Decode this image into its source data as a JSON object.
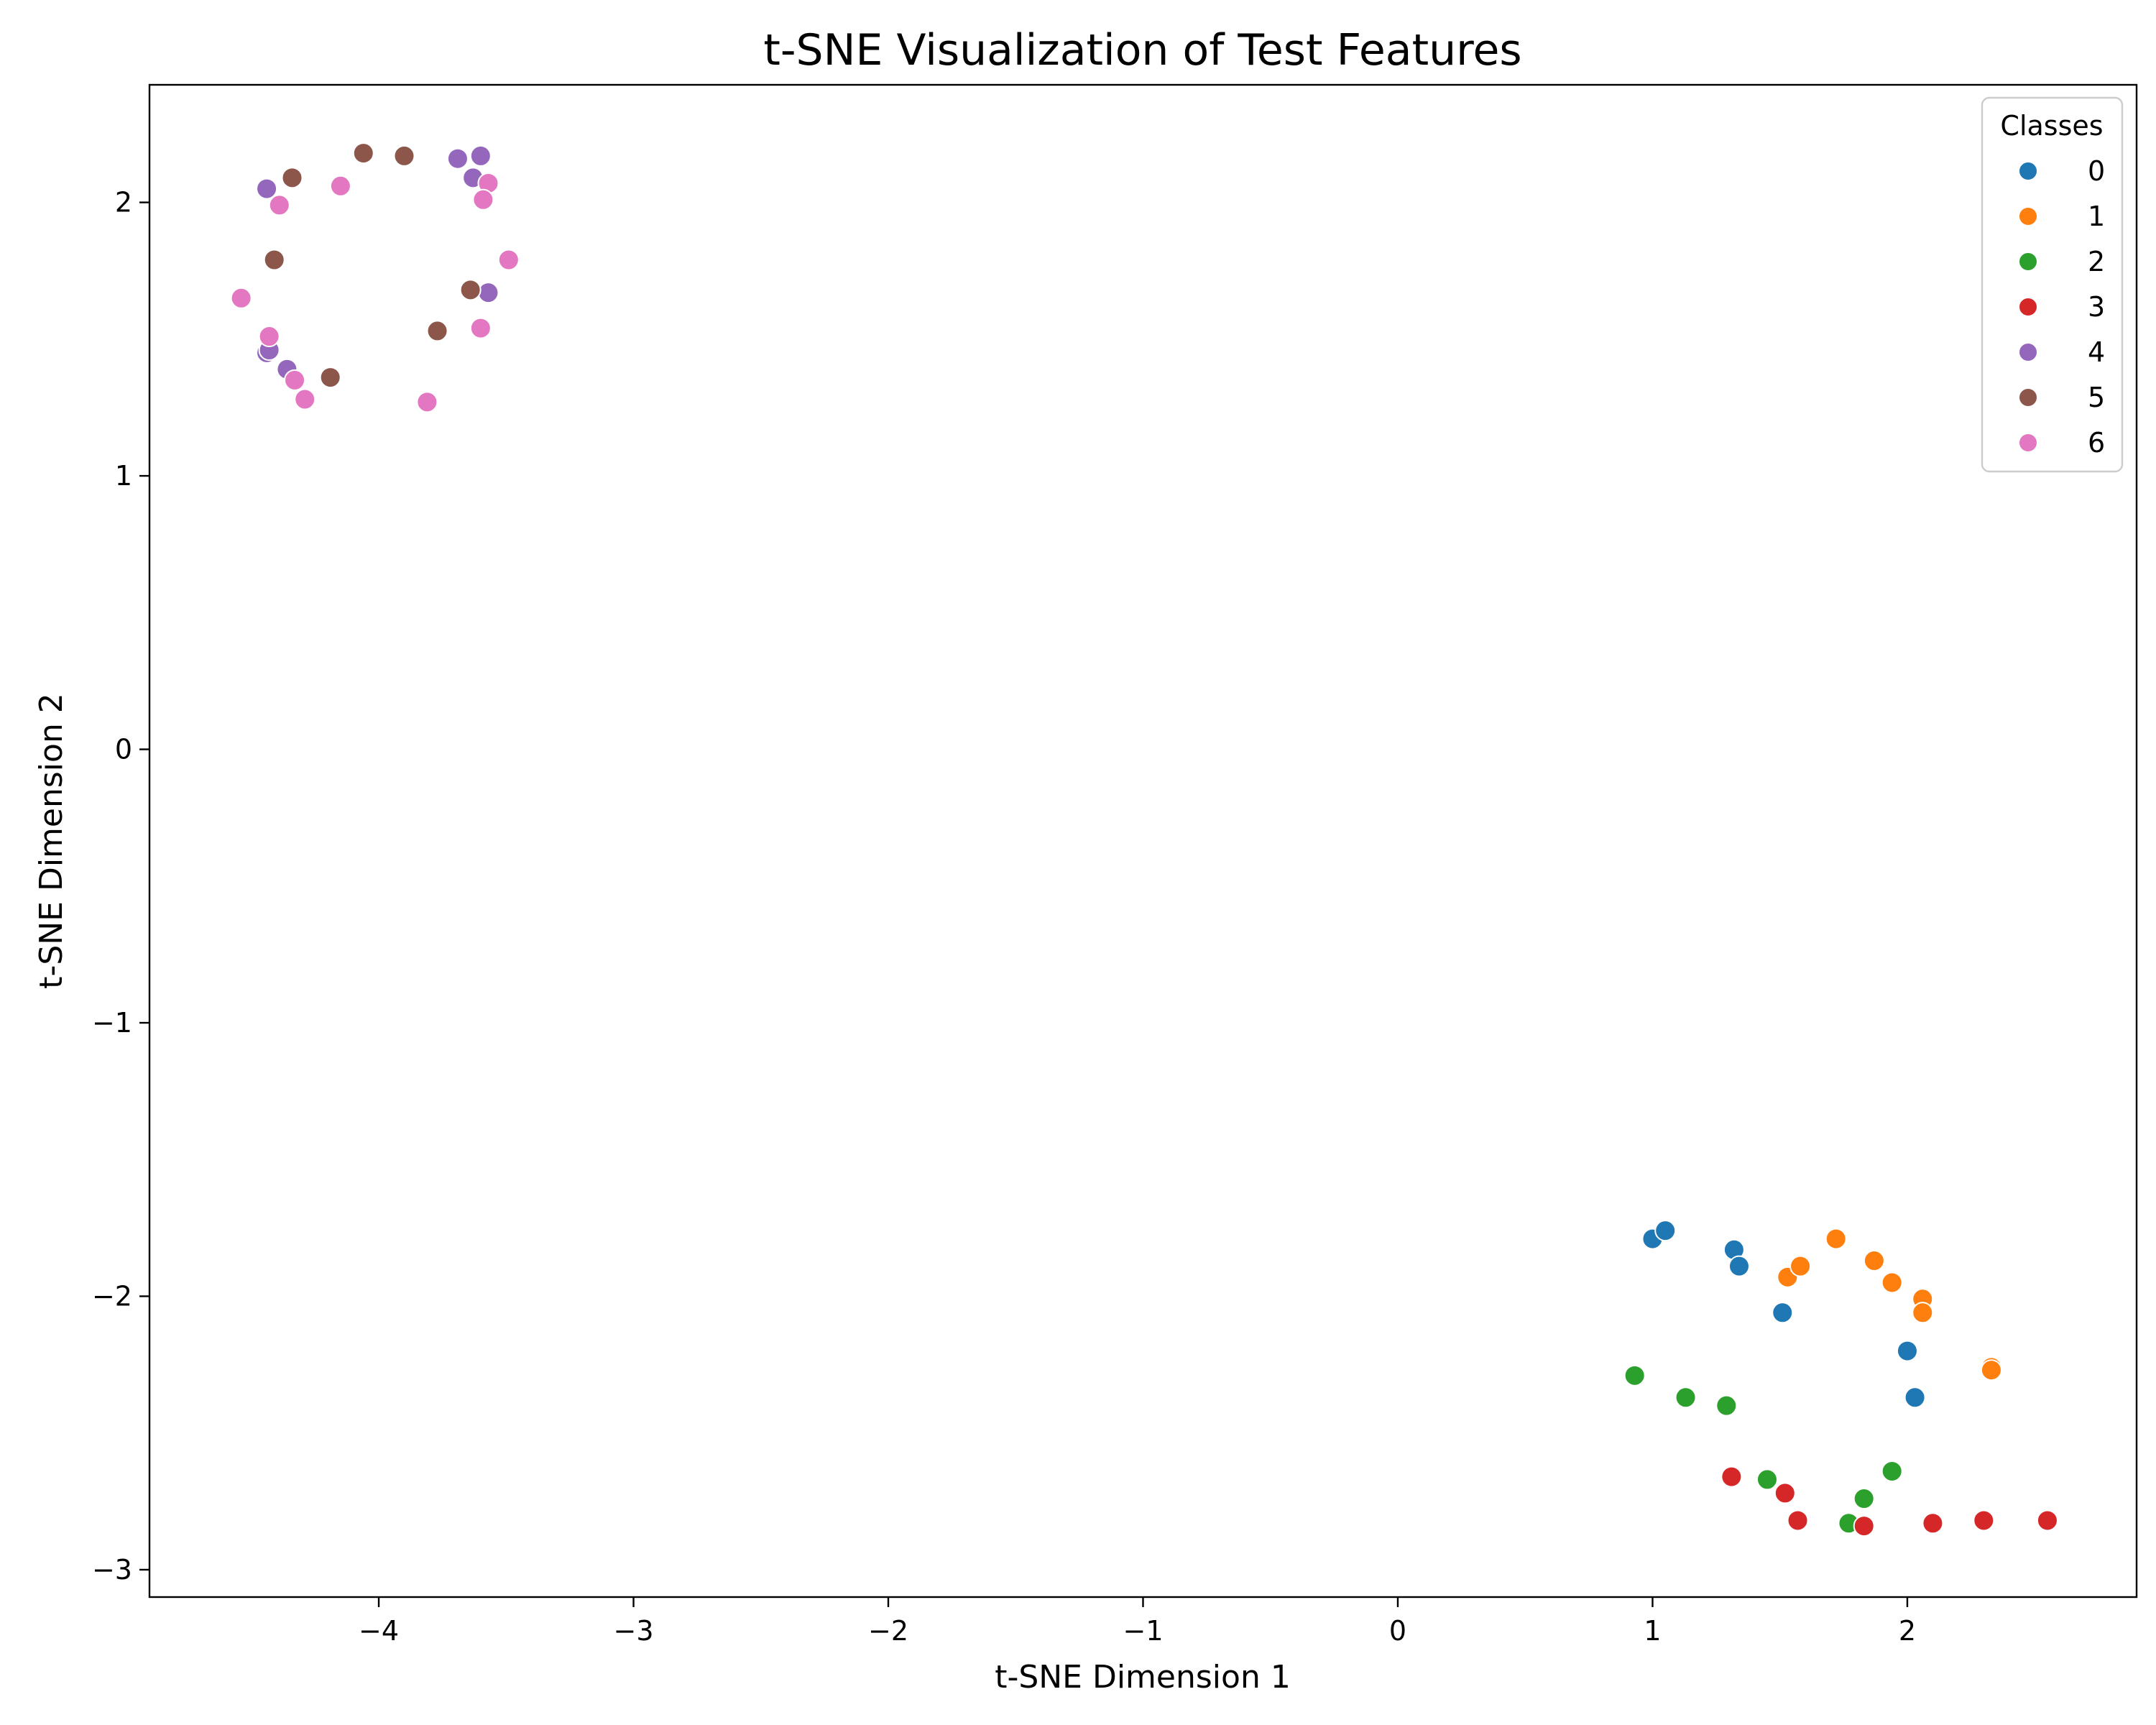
{
  "chart_data": {
    "type": "scatter",
    "title": "t-SNE Visualization of Test Features",
    "xlabel": "t-SNE Dimension 1",
    "ylabel": "t-SNE Dimension 2",
    "xlim": [
      -4.9,
      2.9
    ],
    "ylim": [
      -3.1,
      2.43
    ],
    "xticks": [
      -4,
      -3,
      -2,
      -1,
      0,
      1,
      2
    ],
    "xtick_labels": [
      "−4",
      "−3",
      "−2",
      "−1",
      "0",
      "1",
      "2"
    ],
    "yticks": [
      -3,
      -2,
      -1,
      0,
      1,
      2
    ],
    "ytick_labels": [
      "−3",
      "−2",
      "−1",
      "0",
      "1",
      "2"
    ],
    "grid": false,
    "legend": {
      "title": "Classes",
      "placement": "top-right"
    },
    "series": [
      {
        "name": "0",
        "color": "#1f77b4",
        "points": [
          [
            1.0,
            -1.79
          ],
          [
            1.05,
            -1.76
          ],
          [
            1.32,
            -1.83
          ],
          [
            1.34,
            -1.89
          ],
          [
            1.51,
            -2.06
          ],
          [
            2.0,
            -2.2
          ],
          [
            2.03,
            -2.37
          ]
        ]
      },
      {
        "name": "1",
        "color": "#ff7f0e",
        "points": [
          [
            1.53,
            -1.93
          ],
          [
            1.58,
            -1.89
          ],
          [
            1.72,
            -1.79
          ],
          [
            1.87,
            -1.87
          ],
          [
            1.94,
            -1.95
          ],
          [
            2.06,
            -2.01
          ],
          [
            2.06,
            -2.06
          ],
          [
            2.33,
            -2.26
          ],
          [
            2.33,
            -2.27
          ]
        ]
      },
      {
        "name": "2",
        "color": "#2ca02c",
        "points": [
          [
            0.93,
            -2.29
          ],
          [
            1.13,
            -2.37
          ],
          [
            1.29,
            -2.4
          ],
          [
            1.45,
            -2.67
          ],
          [
            1.77,
            -2.83
          ],
          [
            1.83,
            -2.74
          ],
          [
            1.94,
            -2.64
          ]
        ]
      },
      {
        "name": "3",
        "color": "#d62728",
        "points": [
          [
            1.31,
            -2.66
          ],
          [
            1.52,
            -2.72
          ],
          [
            1.57,
            -2.82
          ],
          [
            1.83,
            -2.84
          ],
          [
            2.1,
            -2.83
          ],
          [
            2.3,
            -2.82
          ],
          [
            2.55,
            -2.82
          ]
        ]
      },
      {
        "name": "4",
        "color": "#9467bd",
        "points": [
          [
            -4.44,
            2.05
          ],
          [
            -3.69,
            2.16
          ],
          [
            -3.6,
            2.17
          ],
          [
            -3.63,
            2.09
          ],
          [
            -4.44,
            1.45
          ],
          [
            -4.43,
            1.46
          ],
          [
            -4.36,
            1.39
          ],
          [
            -3.57,
            1.67
          ]
        ]
      },
      {
        "name": "5",
        "color": "#8c564b",
        "points": [
          [
            -4.34,
            2.09
          ],
          [
            -4.06,
            2.18
          ],
          [
            -3.9,
            2.17
          ],
          [
            -4.41,
            1.79
          ],
          [
            -3.64,
            1.68
          ],
          [
            -3.77,
            1.53
          ],
          [
            -4.19,
            1.36
          ]
        ]
      },
      {
        "name": "6",
        "color": "#e377c2",
        "points": [
          [
            -4.39,
            1.99
          ],
          [
            -4.15,
            2.06
          ],
          [
            -3.57,
            2.07
          ],
          [
            -3.59,
            2.01
          ],
          [
            -3.49,
            1.79
          ],
          [
            -4.54,
            1.65
          ],
          [
            -4.43,
            1.51
          ],
          [
            -3.6,
            1.54
          ],
          [
            -4.33,
            1.35
          ],
          [
            -4.29,
            1.28
          ],
          [
            -3.81,
            1.27
          ]
        ]
      }
    ]
  }
}
